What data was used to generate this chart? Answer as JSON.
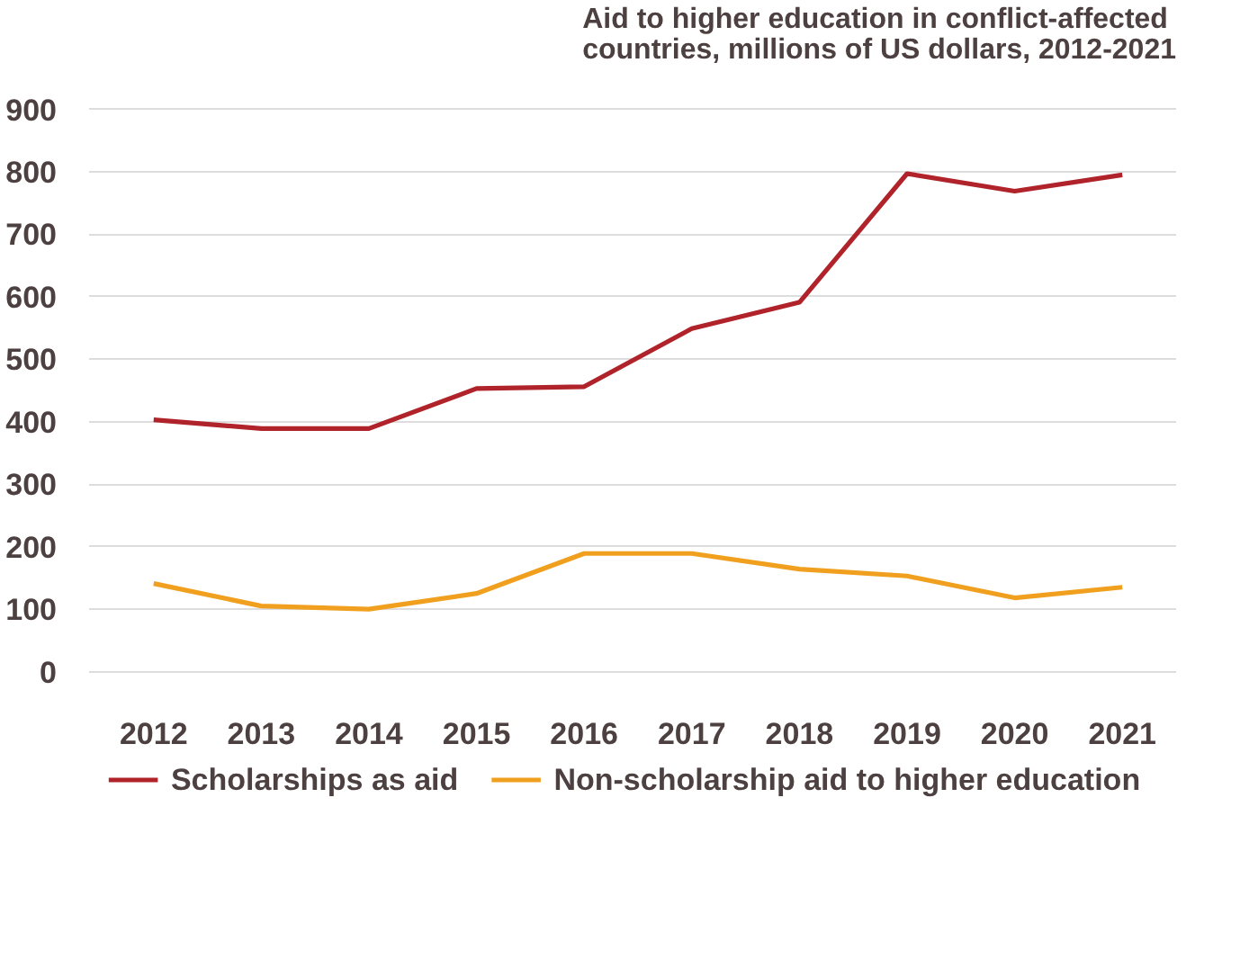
{
  "chart_data": {
    "type": "line",
    "title": "Aid to higher education in conflict-affected countries, millions of US dollars, 2012-2021",
    "categories": [
      "2012",
      "2013",
      "2014",
      "2015",
      "2016",
      "2017",
      "2018",
      "2019",
      "2020",
      "2021"
    ],
    "series": [
      {
        "name": "Scholarships as aid",
        "color": "#b0232a",
        "values": [
          403,
          389,
          389,
          453,
          456,
          549,
          591,
          797,
          769,
          795
        ]
      },
      {
        "name": "Non-scholarship aid to higher education",
        "color": "#f0a01e",
        "values": [
          141,
          105,
          100,
          125,
          189,
          189,
          164,
          153,
          118,
          135
        ]
      }
    ],
    "ylim": [
      0,
      900
    ],
    "yticks": [
      0,
      100,
      200,
      300,
      400,
      500,
      600,
      700,
      800,
      900
    ],
    "grid": "y",
    "legend": "bottom",
    "marker": "none",
    "line_style": "solid"
  }
}
